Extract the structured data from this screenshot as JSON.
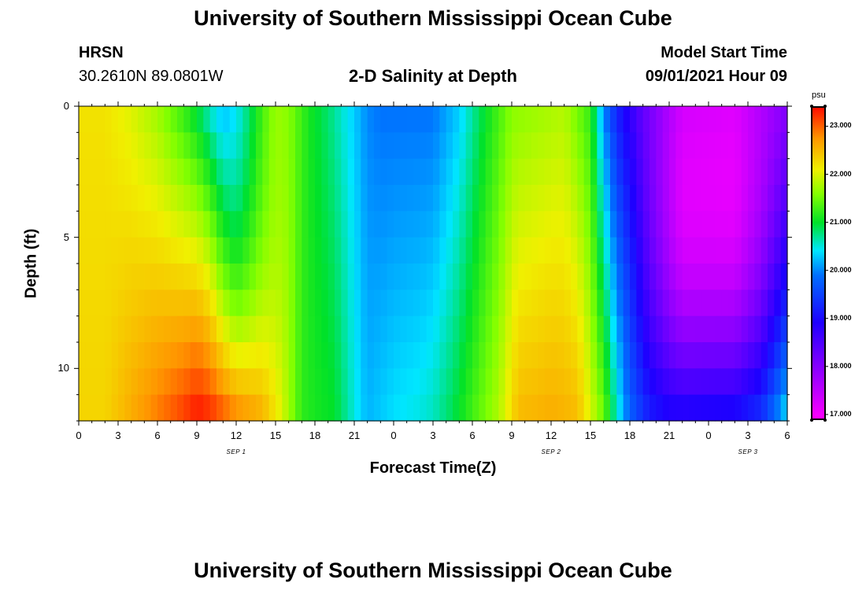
{
  "page": {
    "top_title": "University of Southern Mississippi Ocean Cube",
    "bottom_title": "University of Southern Mississippi Ocean Cube",
    "station_name": "HRSN",
    "station_coords": "30.2610N  89.0801W",
    "center_title": "2-D Salinity at Depth",
    "model_label": "Model Start Time",
    "model_time": "09/01/2021 Hour 09"
  },
  "chart_data": {
    "type": "heatmap",
    "title": "2-D Salinity at Depth",
    "xlabel": "Forecast Time(Z)",
    "ylabel": "Depth (ft)",
    "x_range_hours": [
      0,
      54
    ],
    "x_ticks": [
      {
        "hour": 0,
        "label": "0"
      },
      {
        "hour": 3,
        "label": "3"
      },
      {
        "hour": 6,
        "label": "6"
      },
      {
        "hour": 9,
        "label": "9"
      },
      {
        "hour": 12,
        "label": "12"
      },
      {
        "hour": 15,
        "label": "15"
      },
      {
        "hour": 18,
        "label": "18"
      },
      {
        "hour": 21,
        "label": "21"
      },
      {
        "hour": 24,
        "label": "0"
      },
      {
        "hour": 27,
        "label": "3"
      },
      {
        "hour": 30,
        "label": "6"
      },
      {
        "hour": 33,
        "label": "9"
      },
      {
        "hour": 36,
        "label": "12"
      },
      {
        "hour": 39,
        "label": "15"
      },
      {
        "hour": 42,
        "label": "18"
      },
      {
        "hour": 45,
        "label": "21"
      },
      {
        "hour": 48,
        "label": "0"
      },
      {
        "hour": 51,
        "label": "3"
      },
      {
        "hour": 54,
        "label": "6"
      }
    ],
    "day_labels": [
      {
        "hour": 12,
        "label": "SEP 1"
      },
      {
        "hour": 36,
        "label": "SEP 2"
      },
      {
        "hour": 51,
        "label": "SEP 3"
      }
    ],
    "y_range_ft": [
      0,
      12
    ],
    "y_ticks": [
      {
        "depth": 0,
        "label": "0"
      },
      {
        "depth": 5,
        "label": "5"
      },
      {
        "depth": 10,
        "label": "10"
      }
    ],
    "colorbar": {
      "unit": "psu",
      "min": 16.9,
      "max": 23.4,
      "ticks": [
        "17.000",
        "18.000",
        "19.000",
        "20.000",
        "21.000",
        "22.000",
        "23.000"
      ],
      "tick_values": [
        17,
        18,
        19,
        20,
        21,
        22,
        23
      ]
    },
    "depth_levels_ft": [
      0.5,
      1.5,
      2.5,
      3.5,
      4.5,
      5.5,
      6.5,
      7.5,
      8.5,
      9.5,
      10.5,
      11.5
    ],
    "salinity_surface_psu": [
      {
        "hour": 0,
        "value": 22.2
      },
      {
        "hour": 2,
        "value": 22.2
      },
      {
        "hour": 4,
        "value": 22.0
      },
      {
        "hour": 6,
        "value": 21.7
      },
      {
        "hour": 8,
        "value": 21.2
      },
      {
        "hour": 9,
        "value": 20.9
      },
      {
        "hour": 10,
        "value": 20.5
      },
      {
        "hour": 11,
        "value": 20.2
      },
      {
        "hour": 12,
        "value": 20.4
      },
      {
        "hour": 13,
        "value": 20.8
      },
      {
        "hour": 14,
        "value": 21.3
      },
      {
        "hour": 15,
        "value": 21.7
      },
      {
        "hour": 16,
        "value": 21.6
      },
      {
        "hour": 17.5,
        "value": 21.1
      },
      {
        "hour": 19,
        "value": 20.8
      },
      {
        "hour": 21,
        "value": 20.3
      },
      {
        "hour": 22,
        "value": 20.0
      },
      {
        "hour": 23,
        "value": 19.9
      },
      {
        "hour": 27,
        "value": 19.9
      },
      {
        "hour": 29,
        "value": 20.3
      },
      {
        "hour": 31,
        "value": 21.0
      },
      {
        "hour": 33,
        "value": 21.6
      },
      {
        "hour": 37,
        "value": 21.8
      },
      {
        "hour": 39,
        "value": 21.2
      },
      {
        "hour": 40,
        "value": 20.0
      },
      {
        "hour": 41,
        "value": 19.2
      },
      {
        "hour": 43,
        "value": 18.3
      },
      {
        "hour": 46,
        "value": 17.3
      },
      {
        "hour": 50,
        "value": 17.2
      },
      {
        "hour": 53,
        "value": 17.8
      },
      {
        "hour": 54,
        "value": 18.0
      }
    ],
    "salinity_bottom_psu": [
      {
        "hour": 0,
        "value": 22.3
      },
      {
        "hour": 2,
        "value": 22.3
      },
      {
        "hour": 4,
        "value": 22.6
      },
      {
        "hour": 6,
        "value": 22.9
      },
      {
        "hour": 8,
        "value": 23.2
      },
      {
        "hour": 9,
        "value": 23.4
      },
      {
        "hour": 10,
        "value": 23.3
      },
      {
        "hour": 12,
        "value": 22.9
      },
      {
        "hour": 14,
        "value": 22.6
      },
      {
        "hour": 15.5,
        "value": 22.0
      },
      {
        "hour": 17,
        "value": 21.2
      },
      {
        "hour": 18,
        "value": 21.1
      },
      {
        "hour": 19.5,
        "value": 21.0
      },
      {
        "hour": 21,
        "value": 20.5
      },
      {
        "hour": 22,
        "value": 20.2
      },
      {
        "hour": 24,
        "value": 20.4
      },
      {
        "hour": 26,
        "value": 20.5
      },
      {
        "hour": 27,
        "value": 20.6
      },
      {
        "hour": 28.5,
        "value": 20.9
      },
      {
        "hour": 30,
        "value": 21.3
      },
      {
        "hour": 32,
        "value": 21.8
      },
      {
        "hour": 33.5,
        "value": 22.5
      },
      {
        "hour": 36,
        "value": 22.6
      },
      {
        "hour": 38,
        "value": 22.5
      },
      {
        "hour": 40,
        "value": 21.5
      },
      {
        "hour": 41,
        "value": 20.6
      },
      {
        "hour": 42,
        "value": 19.8
      },
      {
        "hour": 43.5,
        "value": 19.2
      },
      {
        "hour": 45,
        "value": 19.0
      },
      {
        "hour": 50,
        "value": 19.1
      },
      {
        "hour": 52,
        "value": 19.4
      },
      {
        "hour": 53.5,
        "value": 20.2
      },
      {
        "hour": 54,
        "value": 20.5
      }
    ],
    "salinity_mid_adjust_psu": [
      {
        "hour": 0,
        "value": 0.0
      },
      {
        "hour": 10,
        "value": 0.0
      },
      {
        "hour": 12,
        "value": -0.5
      },
      {
        "hour": 14,
        "value": -0.3
      },
      {
        "hour": 16,
        "value": 0.0
      },
      {
        "hour": 42,
        "value": 0.0
      },
      {
        "hour": 46,
        "value": -0.8
      },
      {
        "hour": 50,
        "value": -0.8
      },
      {
        "hour": 54,
        "value": -0.3
      }
    ]
  }
}
